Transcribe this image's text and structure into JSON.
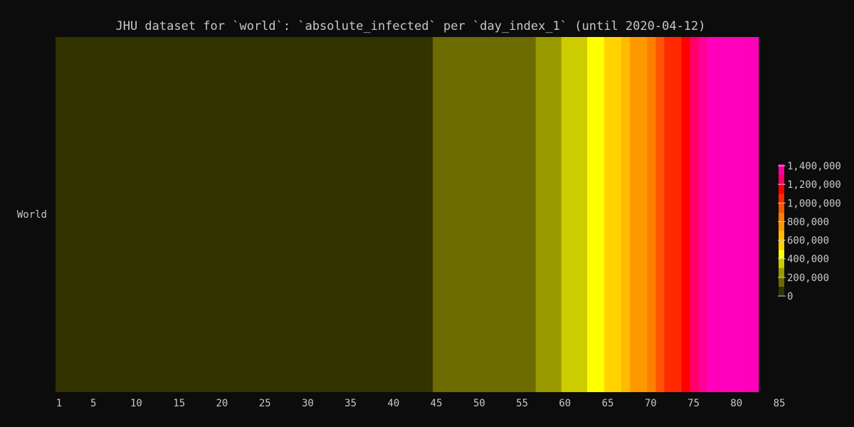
{
  "chart_data": {
    "type": "heatmap",
    "title": "JHU dataset for `world`: `absolute_infected` per `day_index_1` (until 2020-04-12)",
    "xlabel": "",
    "ylabel": "",
    "row_labels": [
      "World"
    ],
    "x_range": [
      1,
      83
    ],
    "x_ticks": [
      1,
      5,
      10,
      15,
      20,
      25,
      30,
      35,
      40,
      45,
      50,
      55,
      60,
      65,
      70,
      75,
      80,
      85
    ],
    "x_tick_labels": [
      "1",
      "5",
      "10",
      "15",
      "20",
      "25",
      "30",
      "35",
      "40",
      "45",
      "50",
      "55",
      "60",
      "65",
      "70",
      "75",
      "80",
      "85"
    ],
    "days": [
      1,
      2,
      3,
      4,
      5,
      6,
      7,
      8,
      9,
      10,
      11,
      12,
      13,
      14,
      15,
      16,
      17,
      18,
      19,
      20,
      21,
      22,
      23,
      24,
      25,
      26,
      27,
      28,
      29,
      30,
      31,
      32,
      33,
      34,
      35,
      36,
      37,
      38,
      39,
      40,
      41,
      42,
      43,
      44,
      45,
      46,
      47,
      48,
      49,
      50,
      51,
      52,
      53,
      54,
      55,
      56,
      57,
      58,
      59,
      60,
      61,
      62,
      63,
      64,
      65,
      66,
      67,
      68,
      69,
      70,
      71,
      72,
      73,
      74,
      75,
      76,
      77,
      78,
      79,
      80,
      81,
      82
    ],
    "values": [
      555,
      654,
      941,
      1434,
      2118,
      2927,
      5578,
      6166,
      8234,
      9927,
      12038,
      16787,
      19881,
      23892,
      27635,
      30794,
      34391,
      37120,
      40150,
      42762,
      44802,
      45221,
      60368,
      66885,
      69030,
      71224,
      73258,
      75136,
      75639,
      76197,
      76819,
      78572,
      78958,
      79561,
      80406,
      81388,
      82746,
      84112,
      86011,
      88369,
      90306,
      92840,
      95120,
      97886,
      101801,
      105847,
      109821,
      113590,
      118620,
      125875,
      128352,
      145205,
      156101,
      167454,
      181574,
      197102,
      214821,
      242570,
      272208,
      304507,
      336953,
      378235,
      418045,
      467653,
      529591,
      593291,
      660706,
      720117,
      782365,
      857487,
      932605,
      1013157,
      1095917,
      1197405,
      1272115,
      1345048,
      1426096,
      1511104,
      1595350,
      1691719,
      1771514,
      1846680
    ],
    "color_scale": {
      "thresholds": [
        100000,
        200000,
        300000,
        400000,
        500000,
        600000,
        700000,
        800000,
        900000,
        1000000,
        1100000,
        1200000,
        1300000,
        1400000
      ],
      "colors": [
        "#333300",
        "#6b6b00",
        "#999900",
        "#cccc00",
        "#ffff00",
        "#ffd200",
        "#ffbb00",
        "#ff9900",
        "#ff7f00",
        "#ff5500",
        "#ff2a00",
        "#ff0000",
        "#ff0066",
        "#ff0099",
        "#ff00bb"
      ]
    },
    "colorbar": {
      "min": 0,
      "max": 1400000,
      "ticks": [
        0,
        200000,
        400000,
        600000,
        800000,
        1000000,
        1200000,
        1400000
      ],
      "tick_labels": [
        "0",
        "200,000",
        "400,000",
        "600,000",
        "800,000",
        "1,000,000",
        "1,200,000",
        "1,400,000"
      ]
    },
    "grid": false,
    "legend": "right"
  }
}
